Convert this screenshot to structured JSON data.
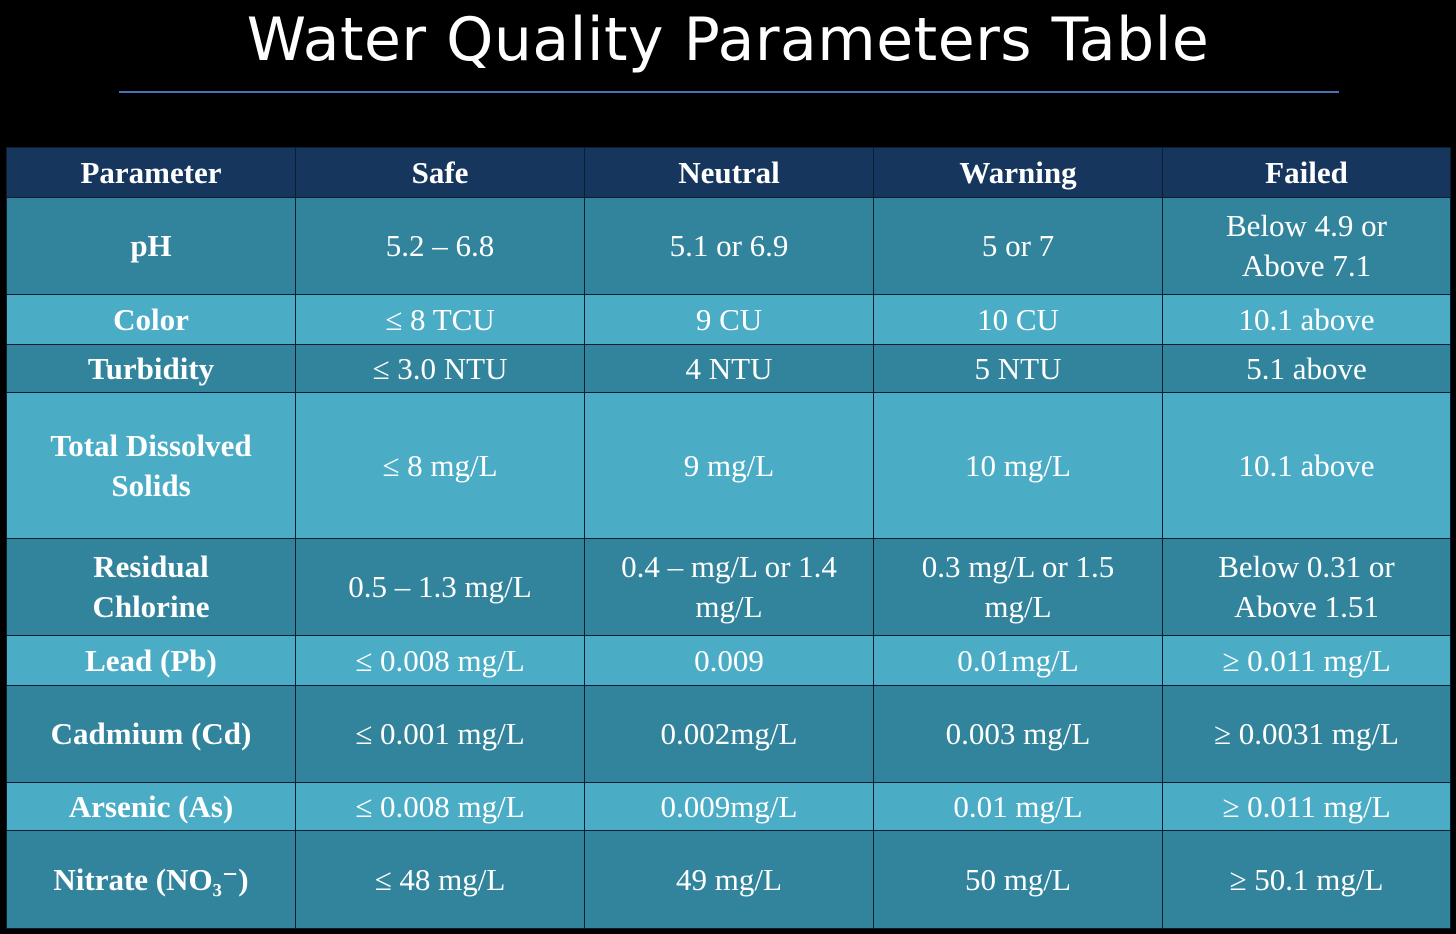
{
  "title": "Water Quality Parameters Table",
  "table": {
    "headers": [
      "Parameter",
      "Safe",
      "Neutral",
      "Warning",
      "Failed"
    ],
    "rows": [
      {
        "parameter": "pH",
        "safe": "5.2 – 6.8",
        "neutral": "5.1 or 6.9",
        "warning": "5 or 7",
        "failed": "Below 4.9 or Above 7.1"
      },
      {
        "parameter": "Color",
        "safe": "≤ 8 TCU",
        "neutral": "9 CU",
        "warning": "10 CU",
        "failed": "10.1 above"
      },
      {
        "parameter": "Turbidity",
        "safe": "≤ 3.0 NTU",
        "neutral": "4 NTU",
        "warning": "5 NTU",
        "failed": "5.1 above"
      },
      {
        "parameter": "Total Dissolved Solids",
        "safe": "≤ 8 mg/L",
        "neutral": "9 mg/L",
        "warning": "10 mg/L",
        "failed": "10.1 above"
      },
      {
        "parameter": "Residual Chlorine",
        "safe": "0.5 – 1.3 mg/L",
        "neutral": "0.4 – mg/L or 1.4 mg/L",
        "warning": "0.3 mg/L or 1.5 mg/L",
        "failed": "Below 0.31 or Above 1.51"
      },
      {
        "parameter": "Lead (Pb)",
        "safe": "≤ 0.008 mg/L",
        "neutral": "0.009",
        "warning": "0.01mg/L",
        "failed": "≥ 0.011 mg/L"
      },
      {
        "parameter": "Cadmium (Cd)",
        "safe": "≤ 0.001 mg/L",
        "neutral": "0.002mg/L",
        "warning": "0.003 mg/L",
        "failed": "≥ 0.0031 mg/L"
      },
      {
        "parameter": "Arsenic (As)",
        "safe": "≤ 0.008 mg/L",
        "neutral": "0.009mg/L",
        "warning": "0.01 mg/L",
        "failed": "≥ 0.011 mg/L"
      },
      {
        "parameter": "Nitrate (NO₃⁻)",
        "safe": "≤ 48 mg/L",
        "neutral": "49 mg/L",
        "warning": "50 mg/L",
        "failed": "≥ 50.1 mg/L"
      }
    ]
  },
  "colors": {
    "background": "#000000",
    "header": "#17365d",
    "row_dark": "#31849b",
    "row_light": "#4bacc6",
    "title_rule": "#4a72b8",
    "text": "#ffffff"
  }
}
